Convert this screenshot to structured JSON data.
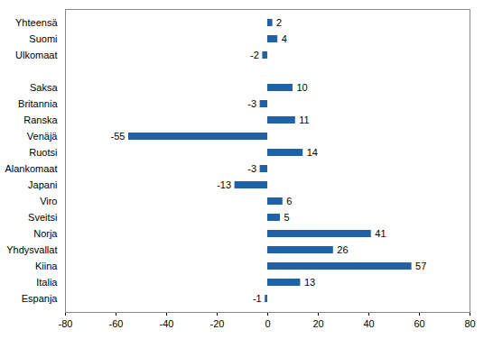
{
  "chart_data": {
    "type": "bar",
    "orientation": "horizontal",
    "categories": [
      "Yhteensä",
      "Suomi",
      "Ulkomaat",
      null,
      "Saksa",
      "Britannia",
      "Ranska",
      "Venäjä",
      "Ruotsi",
      "Alankomaat",
      "Japani",
      "Viro",
      "Sveitsi",
      "Norja",
      "Yhdysvallat",
      "Kiina",
      "Italia",
      "Espanja"
    ],
    "values": [
      2,
      4,
      -2,
      null,
      10,
      -3,
      11,
      -55,
      14,
      -3,
      -13,
      6,
      5,
      41,
      26,
      57,
      13,
      -1
    ],
    "color": "#1f62a8",
    "xlim": [
      -80,
      80
    ],
    "xticks": [
      -80,
      -60,
      -40,
      -20,
      0,
      20,
      40,
      60,
      80
    ],
    "grid": false,
    "data_labels": true
  }
}
